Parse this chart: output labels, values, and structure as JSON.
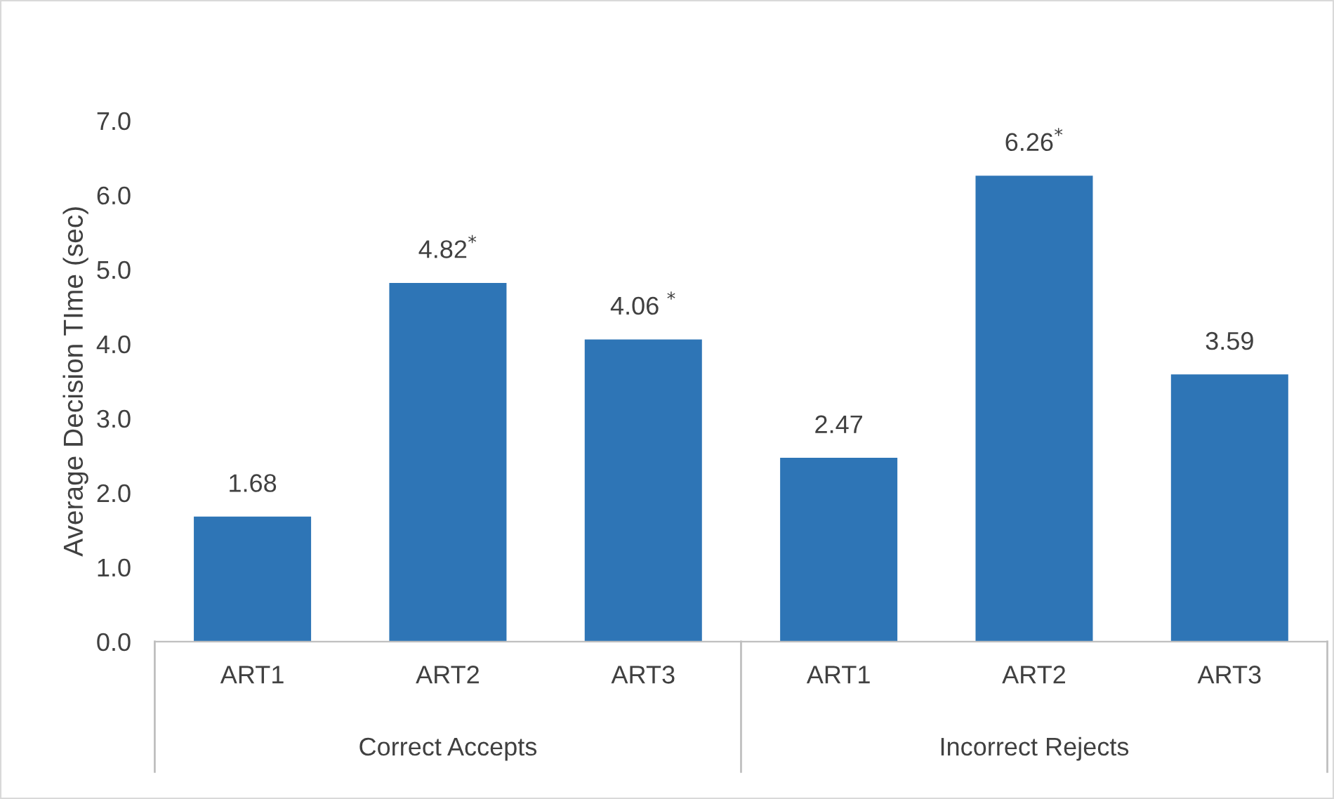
{
  "chart_data": {
    "type": "bar",
    "ylabel": "Average Decision TIme (sec)",
    "categories": [
      "ART1",
      "ART2",
      "ART3",
      "ART1",
      "ART2",
      "ART3"
    ],
    "values": [
      1.68,
      4.82,
      4.06,
      2.47,
      6.26,
      3.59
    ],
    "value_labels": [
      "1.68",
      "4.82$^{*}$",
      "4.06 $^{*}$",
      "2.47",
      "6.26$^{*}$",
      "3.59"
    ],
    "color": "#2e75b6",
    "ylim": [
      0,
      7
    ],
    "yticks": [
      {
        "value": 0,
        "label": "0.0"
      },
      {
        "value": 1,
        "label": "1.0"
      },
      {
        "value": 2,
        "label": "2.0"
      },
      {
        "value": 3,
        "label": "3.0"
      },
      {
        "value": 4,
        "label": "4.0"
      },
      {
        "value": 5,
        "label": "5.0"
      },
      {
        "value": 6,
        "label": "6.0"
      },
      {
        "value": 7,
        "label": "7.0"
      }
    ],
    "annotations": [
      "Correct Accepts",
      "Incorrect Rejects"
    ],
    "grid": false,
    "legend": false
  }
}
